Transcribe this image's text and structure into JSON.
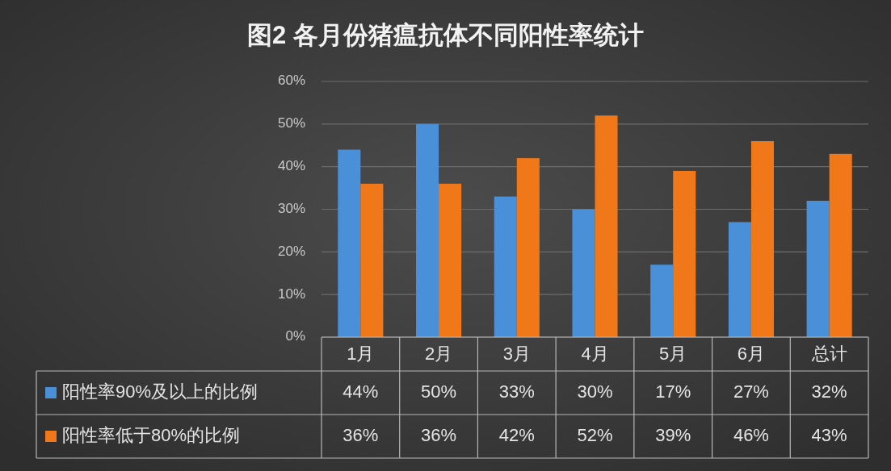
{
  "chart_data": {
    "type": "bar",
    "title": "图2 各月份猪瘟抗体不同阳性率统计",
    "categories": [
      "1月",
      "2月",
      "3月",
      "4月",
      "5月",
      "6月",
      "总计"
    ],
    "series": [
      {
        "name": "阳性率90%及以上的比例",
        "color": "#4a90d9",
        "values": [
          44,
          50,
          33,
          30,
          17,
          27,
          32
        ],
        "value_labels": [
          "44%",
          "50%",
          "33%",
          "30%",
          "17%",
          "27%",
          "32%"
        ]
      },
      {
        "name": "阳性率低于80%的比例",
        "color": "#f07818",
        "values": [
          36,
          36,
          42,
          52,
          39,
          46,
          43
        ],
        "value_labels": [
          "36%",
          "36%",
          "42%",
          "52%",
          "39%",
          "46%",
          "43%"
        ]
      }
    ],
    "ylim": [
      0,
      60
    ],
    "yticks": [
      {
        "value": 0,
        "label": "0%"
      },
      {
        "value": 10,
        "label": "10%"
      },
      {
        "value": 20,
        "label": "20%"
      },
      {
        "value": 30,
        "label": "30%"
      },
      {
        "value": 40,
        "label": "40%"
      },
      {
        "value": 50,
        "label": "50%"
      },
      {
        "value": 60,
        "label": "60%"
      }
    ],
    "grid": "y",
    "legend": "bottom"
  }
}
